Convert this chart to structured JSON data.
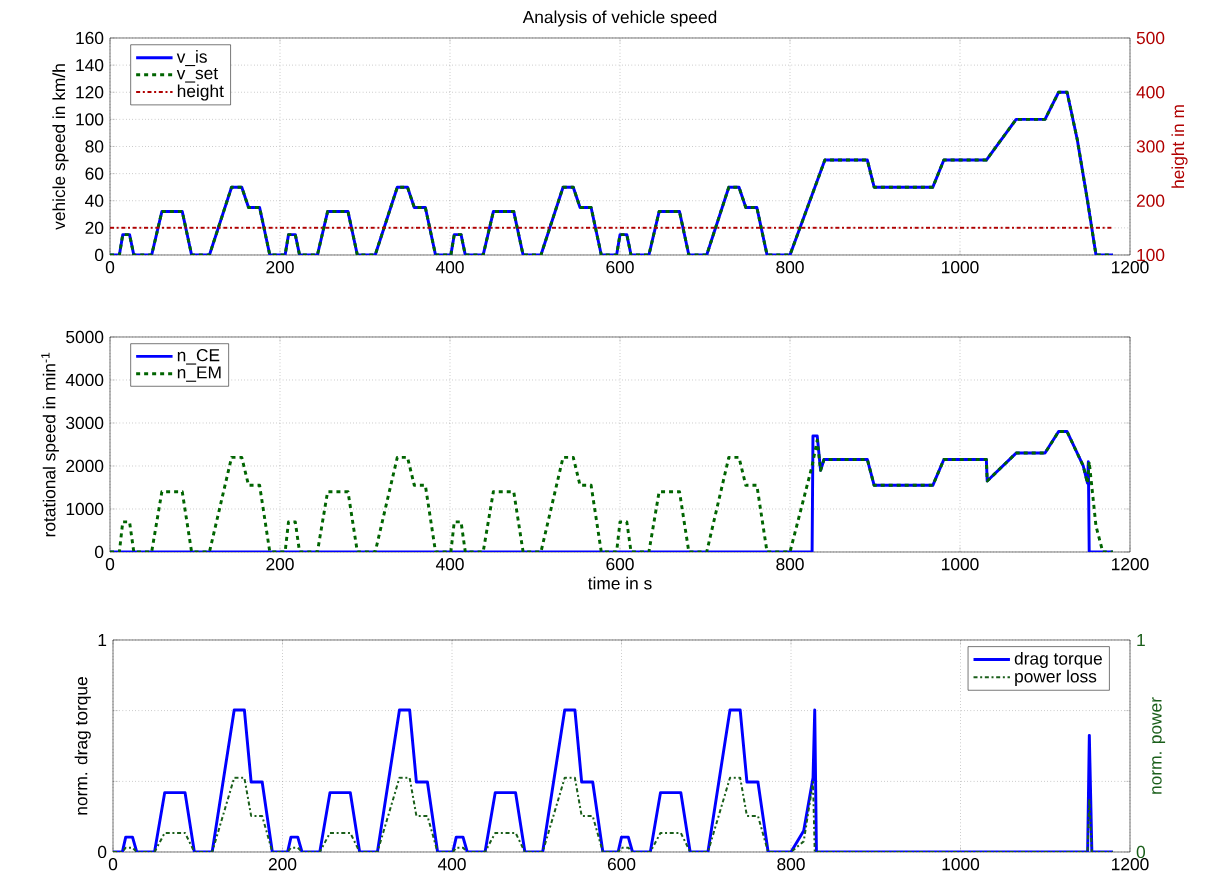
{
  "chart_data": [
    {
      "type": "line",
      "title": "Analysis of vehicle speed",
      "ylabel": "vehicle speed in km/h",
      "y2label": "height in m",
      "x": [
        0,
        11,
        15,
        23,
        28,
        49,
        61,
        85,
        96,
        117,
        143,
        155,
        163,
        176,
        188,
        206,
        210,
        218,
        223,
        244,
        256,
        280,
        291,
        312,
        338,
        350,
        358,
        371,
        383,
        401,
        405,
        413,
        418,
        439,
        451,
        475,
        486,
        507,
        533,
        545,
        553,
        566,
        578,
        596,
        600,
        608,
        613,
        634,
        646,
        670,
        681,
        702,
        728,
        740,
        748,
        761,
        773,
        800,
        841,
        891,
        899,
        968,
        981,
        1031,
        1066,
        1100,
        1116,
        1126,
        1138,
        1150,
        1160,
        1180
      ],
      "series": [
        {
          "name": "v_is",
          "color": "#0000ff",
          "line_style": "solid",
          "values": [
            0,
            0,
            15,
            15,
            0,
            0,
            32,
            32,
            0,
            0,
            50,
            50,
            35,
            35,
            0,
            0,
            15,
            15,
            0,
            0,
            32,
            32,
            0,
            0,
            50,
            50,
            35,
            35,
            0,
            0,
            15,
            15,
            0,
            0,
            32,
            32,
            0,
            0,
            50,
            50,
            35,
            35,
            0,
            0,
            15,
            15,
            0,
            0,
            32,
            32,
            0,
            0,
            50,
            50,
            35,
            35,
            0,
            0,
            70,
            70,
            50,
            50,
            70,
            70,
            100,
            100,
            120,
            120,
            85,
            40,
            0,
            0
          ]
        },
        {
          "name": "v_set",
          "color": "#006400",
          "line_style": "dashed",
          "values": [
            0,
            0,
            15,
            15,
            0,
            0,
            32,
            32,
            0,
            0,
            50,
            50,
            35,
            35,
            0,
            0,
            15,
            15,
            0,
            0,
            32,
            32,
            0,
            0,
            50,
            50,
            35,
            35,
            0,
            0,
            15,
            15,
            0,
            0,
            32,
            32,
            0,
            0,
            50,
            50,
            35,
            35,
            0,
            0,
            15,
            15,
            0,
            0,
            32,
            32,
            0,
            0,
            50,
            50,
            35,
            35,
            0,
            0,
            70,
            70,
            50,
            50,
            70,
            70,
            100,
            100,
            120,
            120,
            85,
            40,
            0,
            0
          ]
        },
        {
          "name": "height",
          "color": "#b00000",
          "line_style": "dashdot",
          "axis": "y2",
          "x": [
            0,
            1180
          ],
          "values": [
            150,
            150
          ]
        }
      ],
      "xlim": [
        0,
        1200
      ],
      "xticks": [
        0,
        200,
        400,
        600,
        800,
        1000,
        1200
      ],
      "ylim": [
        0,
        160
      ],
      "yticks": [
        0,
        20,
        40,
        60,
        80,
        100,
        120,
        140,
        160
      ],
      "y2lim": [
        100,
        500
      ],
      "y2ticks": [
        100,
        200,
        300,
        400,
        500
      ],
      "grid": true,
      "legend": "top left"
    },
    {
      "type": "line",
      "xlabel": "time in s",
      "ylabel": "rotational speed in min$^{-1}$",
      "series": [
        {
          "name": "n_CE",
          "color": "#0000ff",
          "line_style": "solid",
          "x": [
            0,
            826,
            827,
            832,
            836,
            840,
            891,
            899,
            968,
            981,
            1031,
            1032,
            1066,
            1100,
            1116,
            1126,
            1145,
            1150,
            1151,
            1152,
            1180
          ],
          "values": [
            0,
            0,
            2700,
            2700,
            1900,
            2150,
            2150,
            1550,
            1550,
            2150,
            2150,
            1650,
            2300,
            2300,
            2800,
            2800,
            2000,
            1600,
            2100,
            0,
            0
          ]
        },
        {
          "name": "n_EM",
          "color": "#006400",
          "line_style": "dashed",
          "x": [
            0,
            11,
            15,
            23,
            28,
            49,
            61,
            85,
            96,
            117,
            143,
            155,
            163,
            176,
            188,
            206,
            210,
            218,
            223,
            244,
            256,
            280,
            291,
            312,
            338,
            350,
            358,
            371,
            383,
            401,
            405,
            413,
            418,
            439,
            451,
            475,
            486,
            507,
            533,
            545,
            553,
            566,
            578,
            596,
            600,
            608,
            613,
            634,
            646,
            670,
            681,
            702,
            728,
            740,
            748,
            761,
            773,
            800,
            826,
            832,
            836,
            840,
            891,
            899,
            968,
            981,
            1031,
            1032,
            1066,
            1100,
            1116,
            1126,
            1145,
            1150,
            1152,
            1160,
            1168,
            1180
          ],
          "values": [
            0,
            0,
            700,
            700,
            0,
            0,
            1400,
            1400,
            0,
            0,
            2200,
            2200,
            1550,
            1550,
            0,
            0,
            700,
            700,
            0,
            0,
            1400,
            1400,
            0,
            0,
            2200,
            2200,
            1550,
            1550,
            0,
            0,
            700,
            700,
            0,
            0,
            1400,
            1400,
            0,
            0,
            2200,
            2200,
            1550,
            1550,
            0,
            0,
            700,
            700,
            0,
            0,
            1400,
            1400,
            0,
            0,
            2200,
            2200,
            1550,
            1550,
            0,
            0,
            2000,
            2600,
            1900,
            2150,
            2150,
            1550,
            1550,
            2150,
            2150,
            1650,
            2300,
            2300,
            2800,
            2800,
            2000,
            1600,
            2100,
            600,
            0,
            0
          ]
        }
      ],
      "xlim": [
        0,
        1200
      ],
      "xticks": [
        0,
        200,
        400,
        600,
        800,
        1000,
        1200
      ],
      "ylim": [
        0,
        5000
      ],
      "yticks": [
        0,
        1000,
        2000,
        3000,
        4000,
        5000
      ],
      "grid": true,
      "legend": "top left"
    },
    {
      "type": "line",
      "ylabel": "norm. drag torque",
      "y2label": "norm. power",
      "series": [
        {
          "name": "drag torque",
          "color": "#0000ff",
          "line_style": "solid",
          "x": [
            0,
            11,
            15,
            23,
            28,
            49,
            61,
            85,
            96,
            117,
            143,
            155,
            163,
            176,
            188,
            206,
            210,
            218,
            223,
            244,
            256,
            280,
            291,
            312,
            338,
            350,
            358,
            371,
            383,
            401,
            405,
            413,
            418,
            439,
            451,
            475,
            486,
            507,
            533,
            545,
            553,
            566,
            578,
            596,
            600,
            608,
            613,
            634,
            646,
            670,
            681,
            702,
            728,
            740,
            748,
            761,
            773,
            800,
            815,
            826,
            828,
            830,
            1150,
            1152,
            1155,
            1180
          ],
          "values": [
            0,
            0,
            0.07,
            0.07,
            0,
            0,
            0.28,
            0.28,
            0,
            0,
            0.67,
            0.67,
            0.33,
            0.33,
            0,
            0,
            0.07,
            0.07,
            0,
            0,
            0.28,
            0.28,
            0,
            0,
            0.67,
            0.67,
            0.33,
            0.33,
            0,
            0,
            0.07,
            0.07,
            0,
            0,
            0.28,
            0.28,
            0,
            0,
            0.67,
            0.67,
            0.33,
            0.33,
            0,
            0,
            0.07,
            0.07,
            0,
            0,
            0.28,
            0.28,
            0,
            0,
            0.67,
            0.67,
            0.33,
            0.33,
            0,
            0,
            0.1,
            0.35,
            0.67,
            0,
            0,
            0.55,
            0,
            0
          ]
        },
        {
          "name": "power loss",
          "color": "#1a5e1a",
          "line_style": "dashdot",
          "axis": "y2",
          "x": [
            0,
            11,
            15,
            23,
            28,
            49,
            61,
            85,
            96,
            117,
            143,
            155,
            163,
            176,
            188,
            206,
            210,
            218,
            223,
            244,
            256,
            280,
            291,
            312,
            338,
            350,
            358,
            371,
            383,
            401,
            405,
            413,
            418,
            439,
            451,
            475,
            486,
            507,
            533,
            545,
            553,
            566,
            578,
            596,
            600,
            608,
            613,
            634,
            646,
            670,
            681,
            702,
            728,
            740,
            748,
            761,
            773,
            800,
            815,
            826,
            828,
            1150,
            1152,
            1155,
            1180
          ],
          "values": [
            0,
            0,
            0.02,
            0.02,
            0,
            0,
            0.09,
            0.09,
            0,
            0,
            0.35,
            0.35,
            0.17,
            0.17,
            0,
            0,
            0.02,
            0.02,
            0,
            0,
            0.09,
            0.09,
            0,
            0,
            0.35,
            0.35,
            0.17,
            0.17,
            0,
            0,
            0.02,
            0.02,
            0,
            0,
            0.09,
            0.09,
            0,
            0,
            0.35,
            0.35,
            0.17,
            0.17,
            0,
            0,
            0.02,
            0.02,
            0,
            0,
            0.09,
            0.09,
            0,
            0,
            0.35,
            0.35,
            0.17,
            0.17,
            0,
            0,
            0.05,
            0.33,
            0,
            0,
            0.25,
            0,
            0
          ]
        }
      ],
      "xlim": [
        0,
        1200
      ],
      "xticks": [
        0,
        200,
        400,
        600,
        800,
        1000,
        1200
      ],
      "ylim": [
        0,
        1
      ],
      "yticks": [
        0,
        {
          "value": 0.333,
          "label": null
        },
        {
          "value": 0.667,
          "label": null
        },
        1
      ],
      "y2lim": [
        0,
        1
      ],
      "y2ticks": [
        0,
        {
          "value": 0.333,
          "label": null
        },
        {
          "value": 0.667,
          "label": null
        },
        1
      ],
      "grid": true,
      "legend": "top right"
    }
  ]
}
